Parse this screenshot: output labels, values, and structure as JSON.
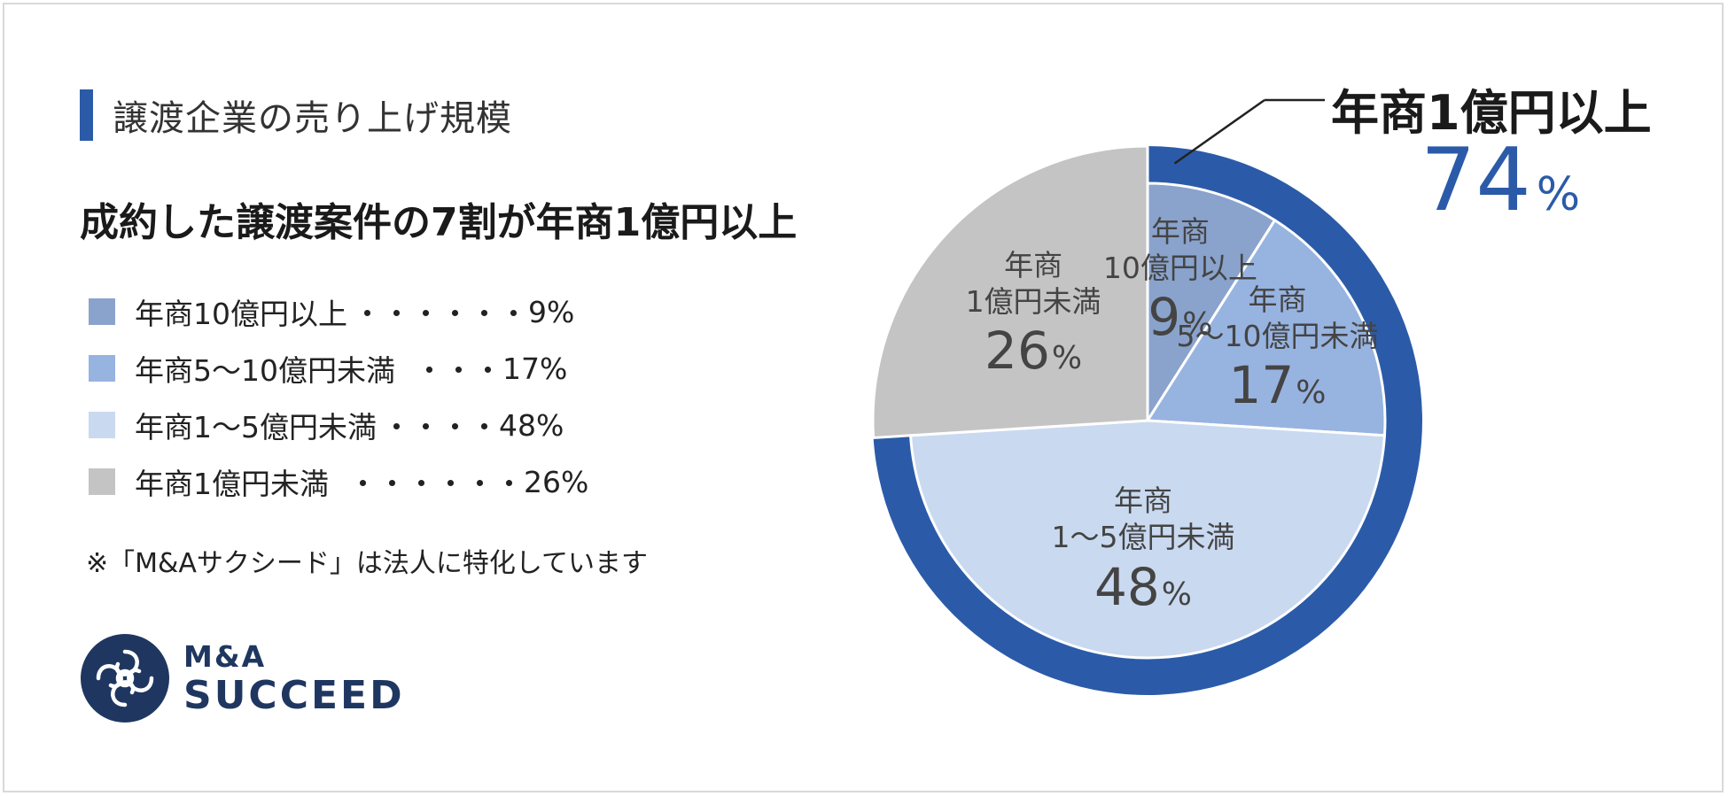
{
  "section_title": "譲渡企業の売り上げ規模",
  "headline": "成約した譲渡案件の7割が年商1億円以上",
  "legend": [
    {
      "label": "年商10億円以上",
      "dots": "・・・・・・",
      "value": "9%",
      "color": "#8aa3cc"
    },
    {
      "label": "年商5〜10億円未満",
      "dots": "・・・",
      "value": "17%",
      "color": "#97b3e0"
    },
    {
      "label": "年商1〜5億円未満",
      "dots": "・・・・",
      "value": "48%",
      "color": "#c9d9f0"
    },
    {
      "label": "年商1億円未満",
      "dots": "・・・・・・",
      "value": "26%",
      "color": "#c4c4c4"
    }
  ],
  "note": "※「M&Aサクシード」は法人に特化しています",
  "logo": {
    "line1": "M&A",
    "line2": "SUCCEED",
    "icon": "succeed-knot-icon"
  },
  "callout": {
    "label": "年商1億円以上",
    "value": "74",
    "unit": "%",
    "color": "#2b5ba8"
  },
  "chart_data": {
    "type": "pie",
    "title": "譲渡企業の売り上げ規模",
    "unit": "%",
    "slices": [
      {
        "name_line1": "年商",
        "name_line2": "10億円以上",
        "value": 9,
        "display": "9",
        "color": "#8aa3cc"
      },
      {
        "name_line1": "年商",
        "name_line2": "5〜10億円未満",
        "value": 17,
        "display": "17",
        "color": "#97b3e0"
      },
      {
        "name_line1": "年商",
        "name_line2": "1〜5億円未満",
        "value": 48,
        "display": "48",
        "color": "#c9d9f0"
      },
      {
        "name_line1": "年商",
        "name_line2": "1億円未満",
        "value": 26,
        "display": "26",
        "color": "#c4c4c4"
      }
    ],
    "outer_ring": {
      "label": "年商1億円以上",
      "value": 74,
      "color": "#2b5ba8",
      "covers_slices": [
        0,
        1,
        2
      ]
    }
  }
}
